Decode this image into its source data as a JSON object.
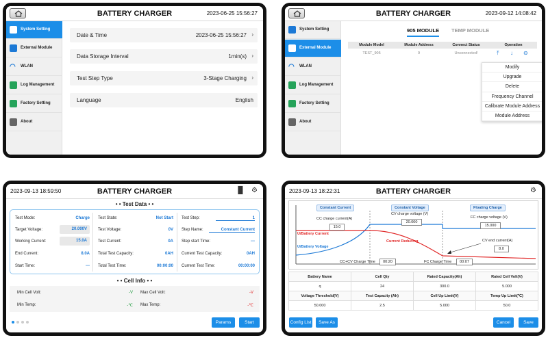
{
  "app_title": "BATTERY CHARGER",
  "screen1": {
    "datetime": "2023-06-25 15:56:27",
    "sidebar": [
      {
        "label": "System Setting",
        "icon": "settings-icon"
      },
      {
        "label": "External Module",
        "icon": "plug-icon"
      },
      {
        "label": "WLAN",
        "icon": "wifi-icon"
      },
      {
        "label": "Log Management",
        "icon": "clipboard-icon"
      },
      {
        "label": "Factory Setting",
        "icon": "terminal-icon"
      },
      {
        "label": "About",
        "icon": "info-icon"
      }
    ],
    "rows": [
      {
        "key": "Date & Time",
        "value": "2023-06-25 15:56:27"
      },
      {
        "key": "Data Storage Interval",
        "value": "1min(s)"
      },
      {
        "key": "Test Step Type",
        "value": "3-Stage Charging"
      },
      {
        "key": "Language",
        "value": "English"
      }
    ]
  },
  "screen2": {
    "datetime": "2023-09-12 14:08:42",
    "tabs": [
      "905 MODULE",
      "TEMP MODULE"
    ],
    "table": {
      "headers": [
        "Module Model",
        "Module Address",
        "Connect Status",
        "Operation"
      ],
      "row": [
        "TEST_905",
        "9",
        "Unconnected!"
      ]
    },
    "menu": [
      "Modify",
      "Upgrade",
      "Delete",
      "Frequency Channel",
      "Calibrate Module Address",
      "Module Address"
    ]
  },
  "screen3": {
    "datetime": "2023-09-13 18:59:50",
    "test_data_title": "Test Data",
    "cell_info_title": "Cell Info",
    "col1": [
      {
        "k": "Test Mode:",
        "v": "Charge"
      },
      {
        "k": "Target Voltage:",
        "v": "20.000V"
      },
      {
        "k": "Working Current:",
        "v": "15.0A"
      },
      {
        "k": "End Current:",
        "v": "8.0A"
      },
      {
        "k": "Start Time:",
        "v": "---"
      }
    ],
    "col2": [
      {
        "k": "Test State:",
        "v": "Not Start"
      },
      {
        "k": "Test Voltage:",
        "v": "0V"
      },
      {
        "k": "Test Current:",
        "v": "0A"
      },
      {
        "k": "Total Test Capacity:",
        "v": "0AH"
      },
      {
        "k": "Total Test Time:",
        "v": "00:00:00"
      }
    ],
    "col3": [
      {
        "k": "Test Step:",
        "v": "1"
      },
      {
        "k": "Step Name:",
        "v": "Constant Current"
      },
      {
        "k": "Step start Time:",
        "v": "---"
      },
      {
        "k": "Current Test Capacity:",
        "v": "0AH"
      },
      {
        "k": "Current Test Time:",
        "v": "00:00:00"
      }
    ],
    "cell_info": [
      {
        "k": "Min Cell Volt:",
        "v": "-V"
      },
      {
        "k": "Max Cell Volt:",
        "v": "-V"
      },
      {
        "k": "Min Temp:",
        "v": "-℃"
      },
      {
        "k": "Max Temp:",
        "v": "-℃"
      }
    ],
    "buttons": [
      "Params",
      "Start"
    ]
  },
  "screen4": {
    "datetime": "2023-09-13 18:22:31",
    "phases": [
      "Constant Current",
      "Constant Voltage",
      "Floating Charge"
    ],
    "cc_current_label": "CC charge current(A)",
    "cc_current": "15.0",
    "cv_voltage_label": "CV charge voltage (V)",
    "cv_voltage": "20.000",
    "fc_voltage_label": "FC charge voltage (V)",
    "fc_voltage": "15.000",
    "cv_end_label": "CV end current(A)",
    "cv_end": "8.0",
    "u_battery_current": "U/Battery Current",
    "u_battery_voltage": "U/Battery Voltage",
    "current_reducing": "Current Reducing",
    "cccv_time_label": "CC+CV Charge Time",
    "cccv_time": "00:20",
    "fc_time_label": "FC Charge Time",
    "fc_time": "00:07",
    "table": [
      [
        "Battery Name",
        "Cell Qty",
        "Rated Capacity(Ah)",
        "Rated Cell Volt(V)"
      ],
      [
        "q",
        "24",
        "300.0",
        "5.000"
      ],
      [
        "Voltage Threshold(V)",
        "Test Capacity (Ah)",
        "Cell Up Limit(V)",
        "Temp Up Limit(℃)"
      ],
      [
        "50.000",
        "2.5",
        "5.000",
        "50.0"
      ]
    ],
    "buttons": [
      "Config List",
      "Save As",
      "Cancel",
      "Save"
    ]
  }
}
